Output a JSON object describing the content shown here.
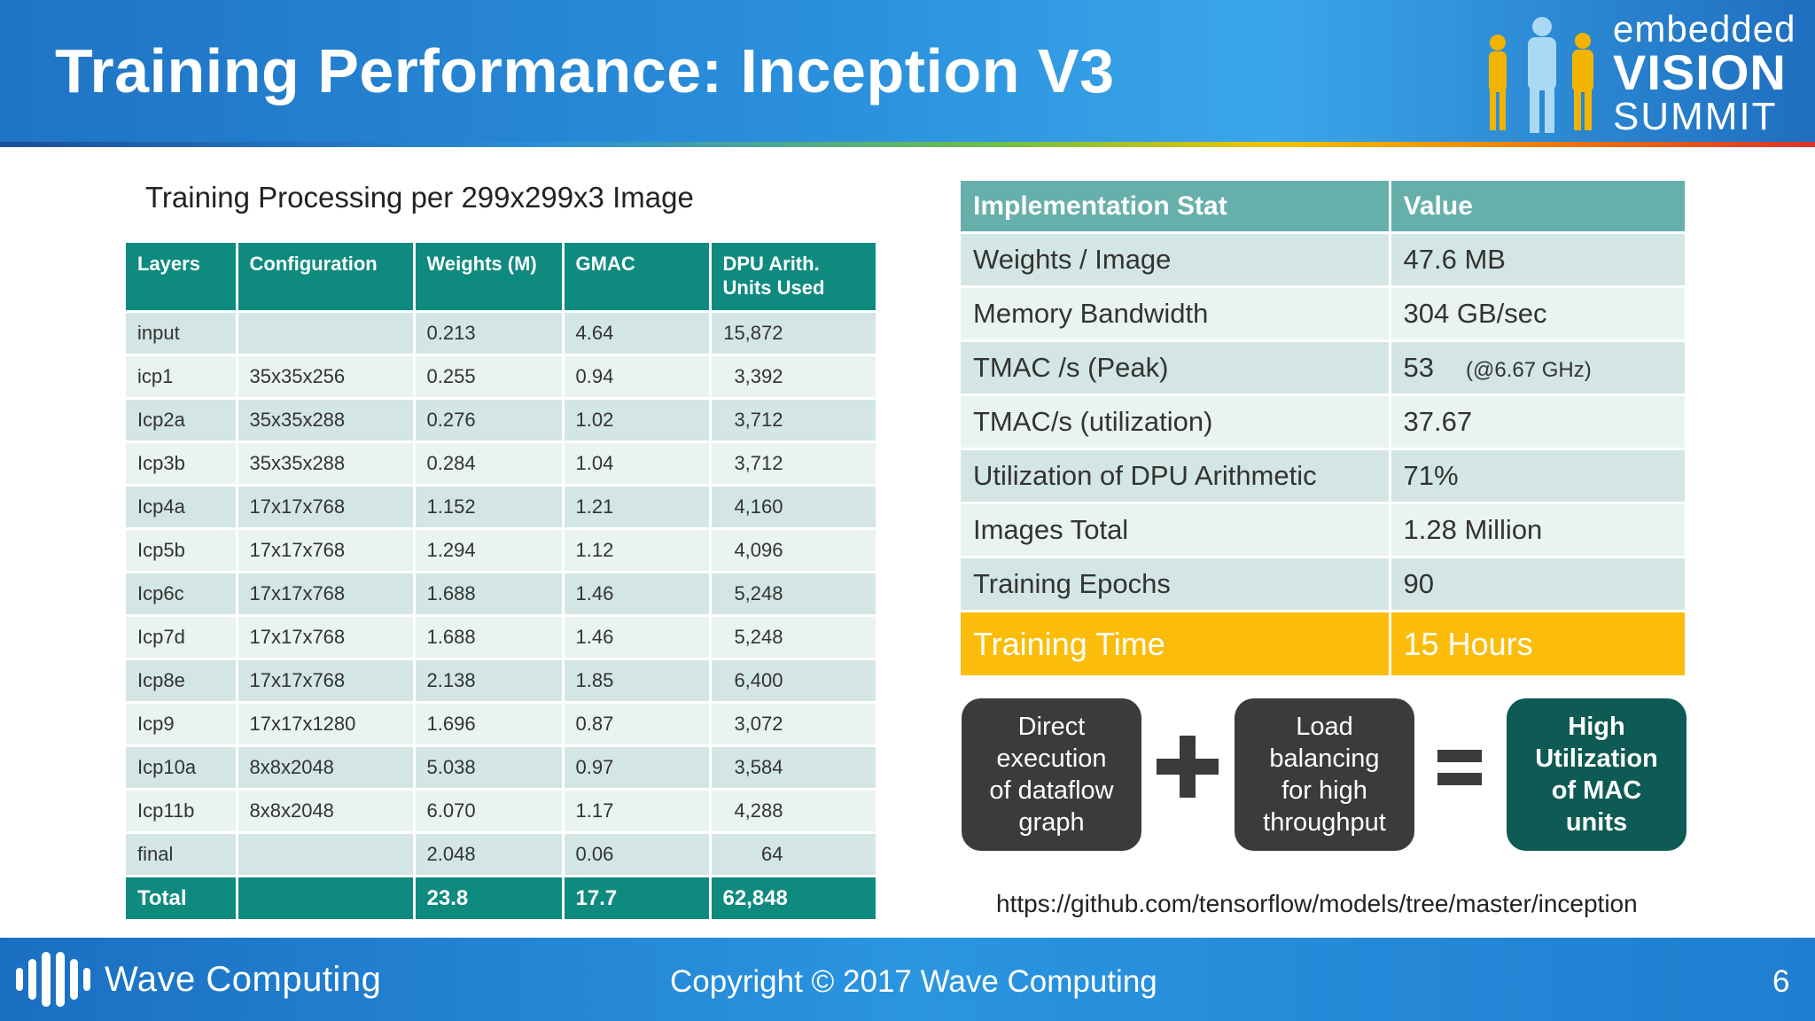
{
  "header": {
    "title": "Training Performance: Inception V3",
    "logo": {
      "line1": "embedded",
      "line2": "VISION",
      "line3": "SUMMIT"
    }
  },
  "left": {
    "caption": "Training Processing per 299x299x3 Image",
    "columns": [
      "Layers",
      "Configuration",
      "Weights (M)",
      "GMAC",
      "DPU Arith. Units Used"
    ],
    "rows": [
      [
        "input",
        "",
        "0.213",
        "4.64",
        "15,872"
      ],
      [
        "icp1",
        "35x35x256",
        "0.255",
        "0.94",
        "3,392"
      ],
      [
        "Icp2a",
        "35x35x288",
        "0.276",
        "1.02",
        "3,712"
      ],
      [
        "Icp3b",
        "35x35x288",
        "0.284",
        "1.04",
        "3,712"
      ],
      [
        "Icp4a",
        "17x17x768",
        "1.152",
        "1.21",
        "4,160"
      ],
      [
        "Icp5b",
        "17x17x768",
        "1.294",
        "1.12",
        "4,096"
      ],
      [
        "Icp6c",
        "17x17x768",
        "1.688",
        "1.46",
        "5,248"
      ],
      [
        "Icp7d",
        "17x17x768",
        "1.688",
        "1.46",
        "5,248"
      ],
      [
        "Icp8e",
        "17x17x768",
        "2.138",
        "1.85",
        "6,400"
      ],
      [
        "Icp9",
        "17x17x1280",
        "1.696",
        "0.87",
        "3,072"
      ],
      [
        "Icp10a",
        "8x8x2048",
        "5.038",
        "0.97",
        "3,584"
      ],
      [
        "Icp11b",
        "8x8x2048",
        "6.070",
        "1.17",
        "4,288"
      ],
      [
        "final",
        "",
        "2.048",
        "0.06",
        "64"
      ]
    ],
    "total": [
      "Total",
      "",
      "23.8",
      "17.7",
      "62,848"
    ]
  },
  "stats": {
    "columns": [
      "Implementation Stat",
      "Value"
    ],
    "rows": [
      {
        "stat": "Weights / Image",
        "value": "47.6 MB",
        "note": ""
      },
      {
        "stat": "Memory Bandwidth",
        "value": "304 GB/sec",
        "note": ""
      },
      {
        "stat": "TMAC /s (Peak)",
        "value": "53",
        "note": "(@6.67 GHz)"
      },
      {
        "stat": "TMAC/s (utilization)",
        "value": "37.67",
        "note": ""
      },
      {
        "stat": "Utilization of DPU Arithmetic",
        "value": "71%",
        "note": ""
      },
      {
        "stat": "Images Total",
        "value": "1.28 Million",
        "note": ""
      },
      {
        "stat": "Training Epochs",
        "value": "90",
        "note": ""
      }
    ],
    "highlight": {
      "stat": "Training Time",
      "value": "15 Hours"
    }
  },
  "equation": {
    "box1": "Direct\nexecution\nof dataflow\ngraph",
    "op1": "+",
    "box2": "Load\nbalancing\nfor high\nthroughput",
    "op2": "=",
    "box3": "High\nUtilization\nof MAC\nunits"
  },
  "url": "https://github.com/tensorflow/models/tree/master/inception",
  "footer": {
    "company": "Wave Computing",
    "copyright": "Copyright © 2017 Wave Computing",
    "page": "6"
  },
  "colors": {
    "table_header": "#0f8a7e",
    "stats_header": "#66afab",
    "highlight": "#fbbd0a",
    "result_box": "#0e5a55",
    "dark_box": "#3b3b3d"
  }
}
